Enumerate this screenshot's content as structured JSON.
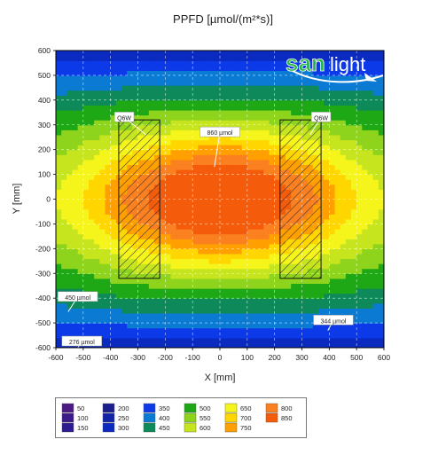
{
  "chart_data": {
    "type": "heatmap",
    "title": "PPFD [µmol/(m²*s)]",
    "xlabel": "X [mm]",
    "ylabel": "Y [mm]",
    "xlim": [
      -600,
      600
    ],
    "ylim": [
      -600,
      600
    ],
    "x_ticks": [
      "-600",
      "-500",
      "-400",
      "-300",
      "-200",
      "-100",
      "0",
      "100",
      "200",
      "300",
      "400",
      "500",
      "600"
    ],
    "y_ticks": [
      "600",
      "500",
      "400",
      "300",
      "200",
      "100",
      "0",
      "-100",
      "-200",
      "-300",
      "-400",
      "-500",
      "-600"
    ],
    "grid": true,
    "peak_value": 860,
    "fixtures": [
      {
        "label": "Q6W",
        "x": [
          -370,
          -220
        ],
        "y": [
          -320,
          320
        ]
      },
      {
        "label": "Q6W",
        "x": [
          220,
          370
        ],
        "y": [
          -320,
          320
        ]
      }
    ],
    "annotations": [
      {
        "text": "Q6W",
        "x": -350,
        "y": 330
      },
      {
        "text": "Q6W",
        "x": 370,
        "y": 330
      },
      {
        "text": "860 µmol",
        "x": 0,
        "y": 270
      },
      {
        "text": "450 µmol",
        "x": -520,
        "y": -395
      },
      {
        "text": "344 µmol",
        "x": 415,
        "y": -490
      },
      {
        "text": "276 µmol",
        "x": -505,
        "y": -575
      }
    ],
    "legend": [
      {
        "value": "50",
        "color": "#4b1a84"
      },
      {
        "value": "100",
        "color": "#3b1a8a"
      },
      {
        "value": "150",
        "color": "#2c1c8f"
      },
      {
        "value": "200",
        "color": "#1a1f8c"
      },
      {
        "value": "250",
        "color": "#1224a8"
      },
      {
        "value": "300",
        "color": "#0a2ac0"
      },
      {
        "value": "350",
        "color": "#0d3ae8"
      },
      {
        "value": "400",
        "color": "#0a7ad2"
      },
      {
        "value": "450",
        "color": "#0e8a5a"
      },
      {
        "value": "500",
        "color": "#1ea816"
      },
      {
        "value": "550",
        "color": "#8ed31c"
      },
      {
        "value": "600",
        "color": "#c6e51e"
      },
      {
        "value": "650",
        "color": "#f5f51c"
      },
      {
        "value": "700",
        "color": "#ffd600"
      },
      {
        "value": "750",
        "color": "#ffa000"
      },
      {
        "value": "800",
        "color": "#fa8020"
      },
      {
        "value": "850",
        "color": "#f45c0c"
      }
    ]
  },
  "logo": {
    "text_san": "san",
    "text_light": "light"
  }
}
